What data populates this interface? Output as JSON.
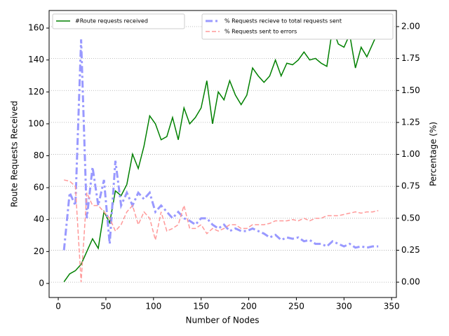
{
  "chart_data": {
    "type": "line",
    "x_label": "Number of Nodes",
    "y_label": "Route Requests Received",
    "y2_label": "Percentage (%)",
    "x": [
      6,
      12,
      18,
      24,
      30,
      36,
      42,
      48,
      54,
      60,
      66,
      72,
      78,
      84,
      90,
      96,
      102,
      108,
      114,
      120,
      126,
      132,
      138,
      144,
      150,
      156,
      162,
      168,
      174,
      180,
      186,
      192,
      198,
      204,
      210,
      216,
      222,
      228,
      234,
      240,
      246,
      252,
      258,
      264,
      270,
      276,
      282,
      288,
      294,
      300,
      306,
      312,
      318,
      324,
      330,
      336
    ],
    "xlim": [
      -9.6,
      355
    ],
    "xticks": [
      0,
      50,
      100,
      150,
      200,
      250,
      300,
      350
    ],
    "ylim": [
      -8.8,
      171
    ],
    "yticks": [
      0,
      20,
      40,
      60,
      80,
      100,
      120,
      140,
      160
    ],
    "y2lim": [
      -0.12,
      2.126
    ],
    "y2ticks": [
      {
        "value": 0,
        "label": "0.00"
      },
      {
        "value": 0.25,
        "label": "0.25"
      },
      {
        "value": 0.5,
        "label": "0.50"
      },
      {
        "value": 0.75,
        "label": "0.75"
      },
      {
        "value": 1,
        "label": "1.00"
      },
      {
        "value": 1.25,
        "label": "1.25"
      },
      {
        "value": 1.5,
        "label": "1.50"
      },
      {
        "value": 1.75,
        "label": "1.75"
      },
      {
        "value": 2,
        "label": "2.00"
      }
    ],
    "grid": true,
    "legend": "upper left",
    "legend2": "upper right",
    "series": [
      {
        "name": "#Route requests received",
        "color": "#008000",
        "linestyle": "solid",
        "width": 1.5,
        "values": [
          1,
          6,
          8,
          12,
          20,
          28,
          22,
          45,
          38,
          58,
          55,
          62,
          81,
          72,
          86,
          105,
          100,
          90,
          92,
          104,
          90,
          110,
          100,
          104,
          110,
          127,
          100,
          120,
          115,
          127,
          118,
          112,
          118,
          135,
          130,
          126,
          130,
          140,
          130,
          138,
          137,
          140,
          145,
          140,
          141,
          138,
          136,
          160,
          150,
          148,
          156,
          135,
          148,
          142,
          150,
          158
        ]
      },
      {
        "name": "% Requests recieve to total requests sent",
        "color": "#9999ff",
        "linestyle": "dashdot",
        "width": 3,
        "axis": "y2",
        "values": [
          0.25,
          0.7,
          0.6,
          1.9,
          0.5,
          0.9,
          0.6,
          0.8,
          0.3,
          0.95,
          0.6,
          0.7,
          0.6,
          0.7,
          0.65,
          0.7,
          0.55,
          0.6,
          0.55,
          0.5,
          0.55,
          0.5,
          0.48,
          0.45,
          0.5,
          0.5,
          0.45,
          0.42,
          0.45,
          0.4,
          0.42,
          0.4,
          0.4,
          0.42,
          0.4,
          0.38,
          0.35,
          0.37,
          0.33,
          0.35,
          0.34,
          0.35,
          0.32,
          0.33,
          0.3,
          0.3,
          0.28,
          0.32,
          0.3,
          0.28,
          0.3,
          0.27,
          0.28,
          0.27,
          0.28,
          0.28
        ]
      },
      {
        "name": "% Requests sent to errors",
        "color": "#ff9999",
        "linestyle": "dashed",
        "width": 1.5,
        "axis": "y2",
        "values": [
          0.8,
          0.79,
          0.75,
          0,
          0.7,
          0.6,
          0.6,
          0.55,
          0.5,
          0.4,
          0.45,
          0.55,
          0.6,
          0.45,
          0.55,
          0.5,
          0.33,
          0.55,
          0.4,
          0.42,
          0.45,
          0.6,
          0.42,
          0.42,
          0.45,
          0.38,
          0.42,
          0.4,
          0.42,
          0.45,
          0.45,
          0.42,
          0.42,
          0.45,
          0.45,
          0.45,
          0.46,
          0.48,
          0.48,
          0.48,
          0.49,
          0.48,
          0.5,
          0.48,
          0.5,
          0.5,
          0.52,
          0.52,
          0.52,
          0.53,
          0.54,
          0.55,
          0.54,
          0.55,
          0.55,
          0.56
        ]
      }
    ]
  }
}
